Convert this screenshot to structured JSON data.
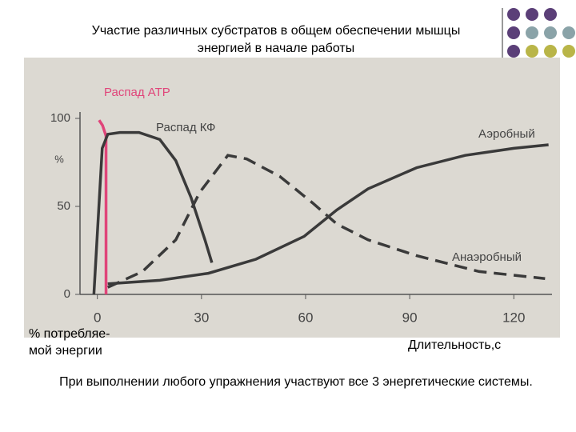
{
  "chart_data": {
    "type": "line",
    "title": "Участие различных субстратов в общем обеспечении мышцы энергией в начале работы",
    "y_label": [
      "% потребляе-",
      "мой энергии"
    ],
    "y_unit": "%",
    "x_label": "Длительность,с",
    "xlim": [
      -5,
      131
    ],
    "xticks": [
      0,
      30,
      60,
      90,
      120
    ],
    "ylim": [
      0,
      100
    ],
    "yticks": [
      0,
      50,
      100
    ],
    "series": [
      {
        "name": "Распад АТР",
        "color": "#e0457a",
        "dash": false,
        "x": [
          0.5,
          1.5,
          2.5,
          2.5
        ],
        "values": [
          99,
          96,
          90,
          0
        ]
      },
      {
        "name": "Распад КФ",
        "color": "#3a3a3a",
        "dash": false,
        "x": [
          -1,
          1.4,
          3,
          6.5,
          12,
          18,
          22.6,
          27,
          31,
          33
        ],
        "values": [
          0,
          83,
          91,
          92,
          92,
          88,
          76,
          55,
          31,
          18
        ]
      },
      {
        "name": "Аэробный",
        "color": "#3a3a3a",
        "dash": false,
        "x": [
          3,
          18,
          32,
          45.7,
          59.6,
          69,
          78,
          92,
          106,
          120,
          130
        ],
        "values": [
          6,
          8,
          12,
          20,
          33,
          48,
          60,
          72,
          79,
          83,
          85
        ]
      },
      {
        "name": "Анаэробный",
        "color": "#3a3a3a",
        "dash": true,
        "x": [
          3,
          13,
          22.6,
          29.5,
          37.6,
          43,
          52.6,
          62,
          69,
          78,
          92,
          110,
          129
        ],
        "values": [
          4,
          13,
          31,
          58,
          79,
          77,
          67,
          52,
          40,
          31,
          22,
          13,
          9
        ]
      }
    ]
  },
  "footer": "При выполнении любого упражнения участвуют все 3 энергетические системы."
}
